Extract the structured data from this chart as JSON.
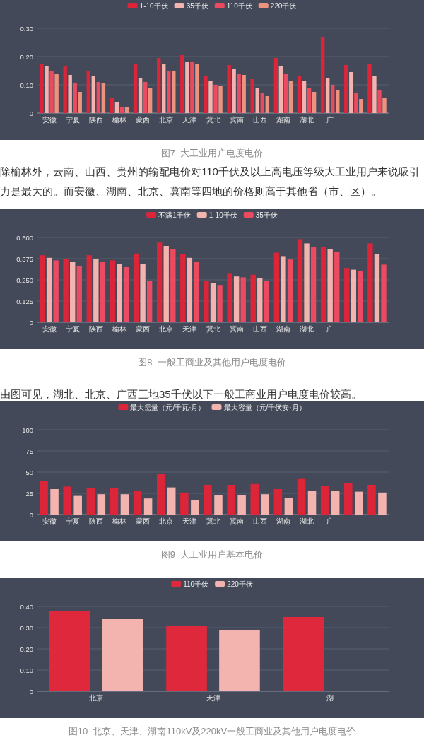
{
  "chart_data": [
    {
      "type": "bar",
      "title": "图7  大工业用户电度电价",
      "categories": [
        "安徽",
        "宁夏",
        "陕西",
        "榆林",
        "蒙西",
        "北京",
        "天津",
        "冀北",
        "冀南",
        "山西",
        "湖南",
        "湖北",
        "广",
        null,
        null
      ],
      "series": [
        {
          "name": "1-10千伏",
          "color": "#dd253a",
          "values": [
            0.175,
            0.165,
            0.15,
            0.055,
            0.175,
            0.195,
            0.205,
            0.13,
            0.17,
            0.12,
            0.195,
            0.13,
            0.27,
            0.17,
            0.175
          ]
        },
        {
          "name": "35千伏",
          "color": "#f3b4af",
          "values": [
            0.165,
            0.135,
            0.13,
            0.04,
            0.125,
            0.175,
            0.18,
            0.115,
            0.155,
            0.09,
            0.165,
            0.115,
            0.125,
            0.145,
            0.13
          ]
        },
        {
          "name": "110千伏",
          "color": "#ec4a60",
          "values": [
            0.15,
            0.105,
            0.11,
            0.02,
            0.11,
            0.15,
            0.18,
            0.1,
            0.14,
            0.07,
            0.14,
            0.09,
            0.1,
            0.07,
            0.08
          ]
        },
        {
          "name": "220千伏",
          "color": "#ee9280",
          "values": [
            0.14,
            0.075,
            0.105,
            0.02,
            0.09,
            0.15,
            0.175,
            0.095,
            0.135,
            0.06,
            0.115,
            0.075,
            0.08,
            0.05,
            0.055
          ]
        }
      ],
      "ylim": [
        0,
        0.3
      ],
      "yticks": [
        0,
        {
          "value": 0.1,
          "label": "0.10"
        },
        {
          "value": 0.2,
          "label": "0.20"
        },
        {
          "value": 0.3,
          "label": "0.30"
        }
      ],
      "grid": "y",
      "legend": "top",
      "annotations": [
        "除榆林外，云南、山西、贵州的输配电价对110千伏及以上高电压等级大工业用户来说吸引力是最大的。而安徽、湖南、北京、冀南等四地的价格则高于其他省（市、区）。"
      ]
    },
    {
      "type": "bar",
      "title": "图8  一般工商业及其他用户电度电价",
      "categories": [
        "安徽",
        "宁夏",
        "陕西",
        "榆林",
        "蒙西",
        "北京",
        "天津",
        "冀北",
        "冀南",
        "山西",
        "湖南",
        "湖北",
        "广",
        null,
        null
      ],
      "series": [
        {
          "name": "不满1千伏",
          "color": "#dd253a",
          "values": [
            0.395,
            0.375,
            0.395,
            0.365,
            0.405,
            0.47,
            0.4,
            0.245,
            0.29,
            0.28,
            0.41,
            0.49,
            0.445,
            0.32,
            0.465
          ]
        },
        {
          "name": "1-10千伏",
          "color": "#f3b4af",
          "values": [
            0.38,
            0.355,
            0.375,
            0.345,
            0.345,
            0.45,
            0.38,
            0.23,
            0.27,
            0.26,
            0.39,
            0.465,
            0.43,
            0.31,
            0.4
          ]
        },
        {
          "name": "35千伏",
          "color": "#ec4a60",
          "values": [
            0.365,
            0.33,
            0.355,
            0.325,
            0.245,
            0.43,
            0.355,
            0.22,
            0.265,
            0.245,
            0.37,
            0.445,
            0.415,
            0.3,
            0.34
          ]
        }
      ],
      "ylim": [
        0,
        0.5
      ],
      "yticks": [
        0,
        0.125,
        {
          "value": 0.25,
          "label": "0.250"
        },
        0.375,
        {
          "value": 0.5,
          "label": "0.500"
        }
      ],
      "grid": "y",
      "legend": "top",
      "annotations": [
        "由图可见，湖北、北京、广西三地35千伏以下一般工商业用户电度电价较高。"
      ]
    },
    {
      "type": "bar",
      "title": "图9  大工业用户基本电价",
      "categories": [
        "安徽",
        "宁夏",
        "陕西",
        "榆林",
        "蒙西",
        "北京",
        "天津",
        "冀北",
        "冀南",
        "山西",
        "湖南",
        "湖北",
        "广",
        null,
        null
      ],
      "series": [
        {
          "name": "最大需量（元/千瓦·月）",
          "color": "#dd253a",
          "values": [
            40,
            33,
            31,
            31,
            28,
            48,
            26,
            35,
            35,
            36,
            30,
            42,
            34,
            37,
            35
          ]
        },
        {
          "name": "最大容量（元/千伏安·月）",
          "color": "#f3b4af",
          "values": [
            30,
            22,
            24,
            24,
            19,
            32,
            17,
            23,
            23,
            24,
            20,
            28,
            28,
            27,
            26
          ]
        }
      ],
      "ylim": [
        0,
        100
      ],
      "yticks": [
        0,
        25,
        50,
        75,
        100
      ],
      "grid": "y",
      "legend": "top"
    },
    {
      "type": "bar",
      "title": "图10  北京、天津、湖南110kV及220kV一般工商业及其他用户电度电价",
      "categories": [
        "北京",
        "天津",
        "湖"
      ],
      "series": [
        {
          "name": "110千伏",
          "color": "#e0283c",
          "values": [
            0.38,
            0.31,
            0.35
          ]
        },
        {
          "name": "220千伏",
          "color": "#f3b4af",
          "values": [
            0.34,
            0.29,
            null
          ]
        }
      ],
      "ylim": [
        0,
        0.4
      ],
      "yticks": [
        0,
        {
          "value": 0.1,
          "label": "0.10"
        },
        {
          "value": 0.2,
          "label": "0.20"
        },
        {
          "value": 0.3,
          "label": "0.30"
        },
        {
          "value": 0.4,
          "label": "0.40"
        }
      ],
      "grid": "y",
      "legend": "top"
    }
  ]
}
